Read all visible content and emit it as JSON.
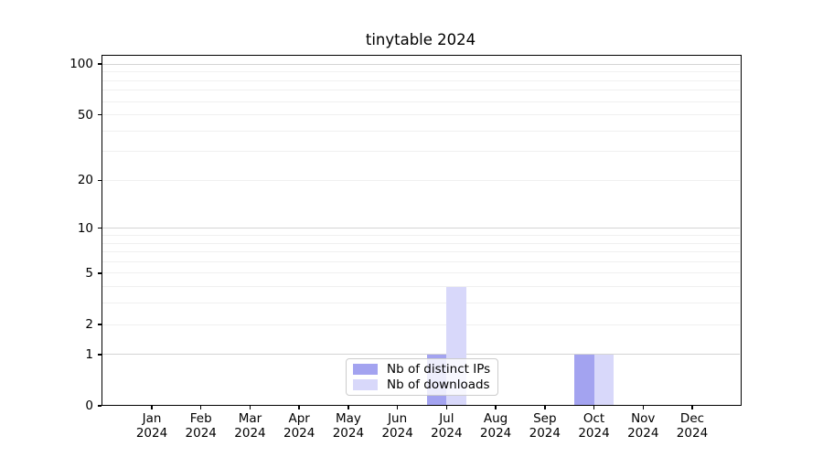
{
  "chart_data": {
    "type": "bar",
    "title": "tinytable 2024",
    "categories": [
      {
        "month": "Jan",
        "year": "2024"
      },
      {
        "month": "Feb",
        "year": "2024"
      },
      {
        "month": "Mar",
        "year": "2024"
      },
      {
        "month": "Apr",
        "year": "2024"
      },
      {
        "month": "May",
        "year": "2024"
      },
      {
        "month": "Jun",
        "year": "2024"
      },
      {
        "month": "Jul",
        "year": "2024"
      },
      {
        "month": "Aug",
        "year": "2024"
      },
      {
        "month": "Sep",
        "year": "2024"
      },
      {
        "month": "Oct",
        "year": "2024"
      },
      {
        "month": "Nov",
        "year": "2024"
      },
      {
        "month": "Dec",
        "year": "2024"
      }
    ],
    "series": [
      {
        "name": "Nb of distinct IPs",
        "color": "#a3a3f0",
        "values": [
          0,
          0,
          0,
          0,
          0,
          0,
          1,
          0,
          0,
          1,
          0,
          0
        ]
      },
      {
        "name": "Nb of downloads",
        "color": "#d8d8fa",
        "values": [
          0,
          0,
          0,
          0,
          0,
          0,
          4,
          0,
          0,
          1,
          0,
          0
        ]
      }
    ],
    "yscale": "log1p",
    "ylim": [
      0,
      113
    ],
    "yticks": [
      0,
      1,
      2,
      5,
      10,
      20,
      50,
      100
    ],
    "major_gridlines": [
      1,
      10,
      100
    ],
    "minor_gridlines": [
      2,
      3,
      4,
      5,
      6,
      7,
      8,
      9,
      20,
      30,
      40,
      50,
      60,
      70,
      80,
      90
    ],
    "grid": true,
    "legend_position": "bottom-center",
    "bar_group": "side-by-side"
  }
}
